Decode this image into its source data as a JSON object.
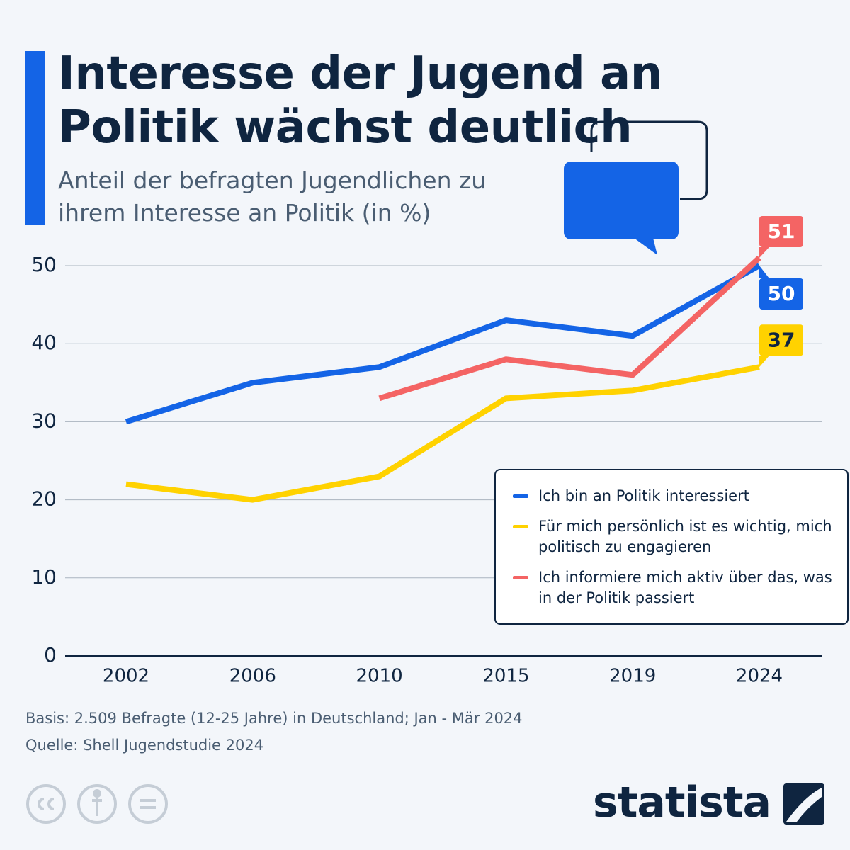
{
  "title": "Interesse der Jugend an Politik wächst deutlich",
  "subtitle": "Anteil der befragten Jugendlichen zu ihrem Interesse an Politik (in %)",
  "chart_data": {
    "type": "line",
    "categories": [
      "2002",
      "2006",
      "2010",
      "2015",
      "2019",
      "2024"
    ],
    "series": [
      {
        "name": "Ich bin an Politik interessiert",
        "color": "#1464e6",
        "values": [
          30,
          35,
          37,
          43,
          41,
          50
        ]
      },
      {
        "name": "Für mich persönlich ist es wichtig, mich politisch zu engagieren",
        "color": "#ffd200",
        "values": [
          22,
          20,
          23,
          33,
          34,
          37
        ]
      },
      {
        "name": "Ich informiere mich aktiv über das, was in der Politik passiert",
        "color": "#f46464",
        "values": [
          null,
          null,
          33,
          38,
          36,
          51
        ]
      }
    ],
    "ylim": [
      0,
      50
    ],
    "yticks": [
      0,
      10,
      20,
      30,
      40,
      50
    ],
    "grid": true
  },
  "footer": {
    "basis": "Basis: 2.509 Befragte (12-25 Jahre) in Deutschland; Jan - Mär 2024",
    "source": "Quelle: Shell Jugendstudie 2024",
    "brand": "statista"
  }
}
